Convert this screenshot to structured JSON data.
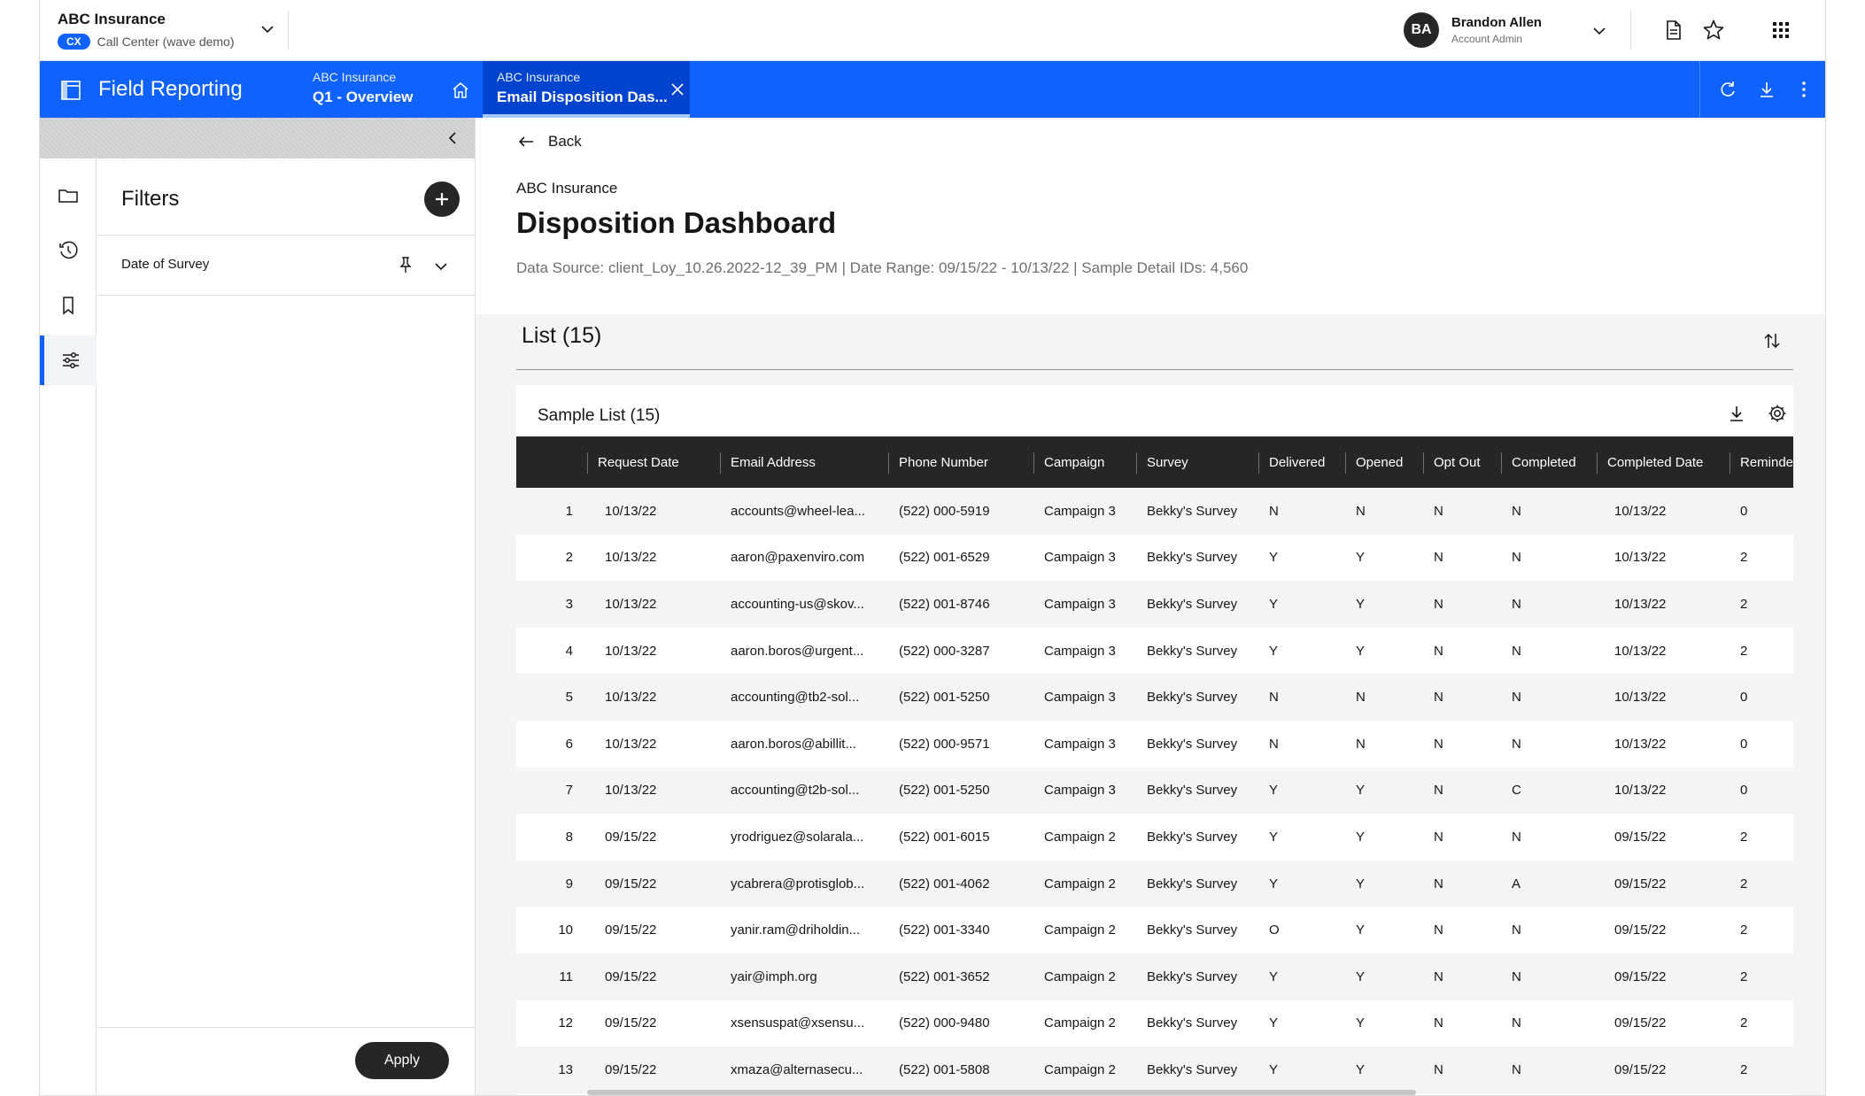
{
  "org": {
    "name": "ABC Insurance",
    "badge": "CX",
    "subtitle": "Call Center (wave demo)"
  },
  "user": {
    "initials": "BA",
    "name": "Brandon Allen",
    "role": "Account Admin"
  },
  "top_icons": [
    "document-icon",
    "star-icon",
    "app-grid-icon"
  ],
  "nav": {
    "app_title": "Field Reporting",
    "tabs": [
      {
        "org": "ABC Insurance",
        "name": "Q1 - Overview"
      },
      {
        "org": "ABC Insurance",
        "name": "Email Disposition Das..."
      }
    ],
    "actions": [
      "refresh-icon",
      "download-icon",
      "overflow-menu-icon"
    ]
  },
  "rail": [
    "folder-icon",
    "history-icon",
    "bookmark-icon",
    "sliders-icon"
  ],
  "filters": {
    "title": "Filters",
    "items": [
      {
        "label": "Date of Survey"
      }
    ],
    "apply_label": "Apply"
  },
  "main": {
    "back_label": "Back",
    "breadcrumb": "ABC Insurance",
    "title": "Disposition Dashboard",
    "datasource": "Data Source: client_Loy_10.26.2022-12_39_PM | Date Range: 09/15/22 - 10/13/22 | Sample Detail IDs: 4,560",
    "list_title": "List (15)",
    "card_title": "Sample List (15)"
  },
  "table": {
    "columns": [
      "",
      "Request Date",
      "Email Address",
      "Phone Number",
      "Campaign",
      "Survey",
      "Delivered",
      "Opened",
      "Opt Out",
      "Completed",
      "Completed Date",
      "Reminde"
    ],
    "rows": [
      [
        "1",
        "10/13/22",
        "accounts@wheel-lea...",
        "(522) 000-5919",
        "Campaign 3",
        "Bekky's Survey",
        "N",
        "N",
        "N",
        "N",
        "10/13/22",
        "0"
      ],
      [
        "2",
        "10/13/22",
        "aaron@paxenviro.com",
        "(522) 001-6529",
        "Campaign 3",
        "Bekky's Survey",
        "Y",
        "Y",
        "N",
        "N",
        "10/13/22",
        "2"
      ],
      [
        "3",
        "10/13/22",
        "accounting-us@skov...",
        "(522) 001-8746",
        "Campaign 3",
        "Bekky's Survey",
        "Y",
        "Y",
        "N",
        "N",
        "10/13/22",
        "2"
      ],
      [
        "4",
        "10/13/22",
        "aaron.boros@urgent...",
        "(522) 000-3287",
        "Campaign 3",
        "Bekky's Survey",
        "Y",
        "Y",
        "N",
        "N",
        "10/13/22",
        "2"
      ],
      [
        "5",
        "10/13/22",
        "accounting@tb2-sol...",
        "(522) 001-5250",
        "Campaign 3",
        "Bekky's Survey",
        "N",
        "N",
        "N",
        "N",
        "10/13/22",
        "0"
      ],
      [
        "6",
        "10/13/22",
        "aaron.boros@abillit...",
        "(522) 000-9571",
        "Campaign 3",
        "Bekky's Survey",
        "N",
        "N",
        "N",
        "N",
        "10/13/22",
        "0"
      ],
      [
        "7",
        "10/13/22",
        "accounting@t2b-sol...",
        "(522) 001-5250",
        "Campaign 3",
        "Bekky's Survey",
        "Y",
        "Y",
        "N",
        "C",
        "10/13/22",
        "0"
      ],
      [
        "8",
        "09/15/22",
        "yrodriguez@solarala...",
        "(522) 001-6015",
        "Campaign 2",
        "Bekky's Survey",
        "Y",
        "Y",
        "N",
        "N",
        "09/15/22",
        "2"
      ],
      [
        "9",
        "09/15/22",
        "ycabrera@protisglob...",
        "(522) 001-4062",
        "Campaign 2",
        "Bekky's Survey",
        "Y",
        "Y",
        "N",
        "A",
        "09/15/22",
        "2"
      ],
      [
        "10",
        "09/15/22",
        "yanir.ram@driholdin...",
        "(522) 001-3340",
        "Campaign 2",
        "Bekky's Survey",
        "O",
        "Y",
        "N",
        "N",
        "09/15/22",
        "2"
      ],
      [
        "11",
        "09/15/22",
        "yair@imph.org",
        "(522) 001-3652",
        "Campaign 2",
        "Bekky's Survey",
        "Y",
        "Y",
        "N",
        "N",
        "09/15/22",
        "2"
      ],
      [
        "12",
        "09/15/22",
        "xsensuspat@xsensu...",
        "(522) 000-9480",
        "Campaign 2",
        "Bekky's Survey",
        "Y",
        "Y",
        "N",
        "N",
        "09/15/22",
        "2"
      ],
      [
        "13",
        "09/15/22",
        "xmaza@alternasecu...",
        "(522) 001-5808",
        "Campaign 2",
        "Bekky's Survey",
        "Y",
        "Y",
        "N",
        "N",
        "09/15/22",
        "2"
      ]
    ]
  },
  "colors": {
    "brand_blue": "#0f62fe",
    "active_tab": "#0043ce",
    "table_header": "#262626",
    "stripe": "#f4f4f4"
  }
}
